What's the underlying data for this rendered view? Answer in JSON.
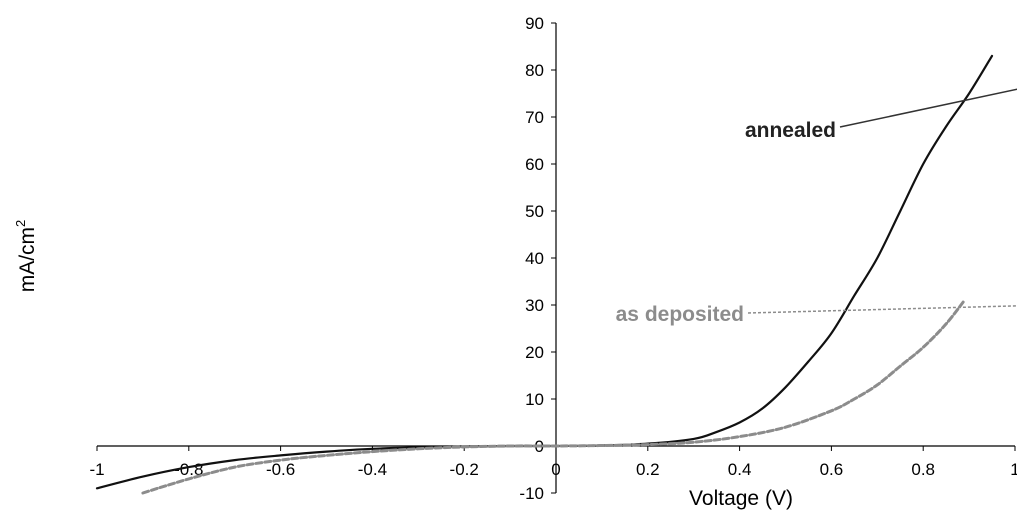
{
  "chart_data": {
    "type": "line",
    "xlabel": "Voltage (V)",
    "ylabel": "mA/cm",
    "ylabel_superscript": "2",
    "xlim": [
      -1,
      1
    ],
    "ylim": [
      -10,
      90
    ],
    "x_ticks": [
      "-1",
      "-0.8",
      "-0.6",
      "-0.4",
      "-0.2",
      "0",
      "0.2",
      "0.4",
      "0.6",
      "0.8",
      "1"
    ],
    "y_ticks": [
      "-10",
      "0",
      "10",
      "20",
      "30",
      "40",
      "50",
      "60",
      "70",
      "80",
      "90"
    ],
    "grid": false,
    "legend": "none",
    "series": [
      {
        "name": "annealed",
        "style": "solid",
        "color": "#111111",
        "x": [
          -1.0,
          -0.9,
          -0.8,
          -0.7,
          -0.6,
          -0.5,
          -0.4,
          -0.3,
          -0.2,
          -0.1,
          0.0,
          0.1,
          0.2,
          0.3,
          0.35,
          0.4,
          0.45,
          0.5,
          0.55,
          0.6,
          0.65,
          0.7,
          0.75,
          0.8,
          0.85,
          0.9,
          0.95
        ],
        "y": [
          -9,
          -6.5,
          -4.5,
          -3,
          -2,
          -1.2,
          -0.6,
          -0.3,
          -0.1,
          0,
          0,
          0.1,
          0.5,
          1.5,
          3,
          5,
          8,
          12.5,
          18,
          24,
          32,
          40,
          50,
          60,
          68,
          75,
          83
        ]
      },
      {
        "name": "as deposited",
        "style": "dashed",
        "color": "#8c8c8c",
        "x": [
          -0.9,
          -0.8,
          -0.7,
          -0.6,
          -0.5,
          -0.4,
          -0.3,
          -0.2,
          -0.1,
          0.0,
          0.1,
          0.2,
          0.3,
          0.4,
          0.5,
          0.6,
          0.65,
          0.7,
          0.75,
          0.8,
          0.85,
          0.89
        ],
        "y": [
          -10,
          -7,
          -4.5,
          -3,
          -2,
          -1.2,
          -0.6,
          -0.2,
          0,
          0,
          0.1,
          0.3,
          0.8,
          2,
          4,
          7.5,
          10,
          13,
          17,
          21,
          26,
          31
        ]
      }
    ],
    "annotations": [
      {
        "text": "annealed",
        "color": "#222222",
        "arrow_to": [
          0.8,
          78
        ]
      },
      {
        "text": "as deposited",
        "color": "#8c8c8c",
        "arrow_to": [
          0.77,
          30
        ]
      }
    ]
  }
}
